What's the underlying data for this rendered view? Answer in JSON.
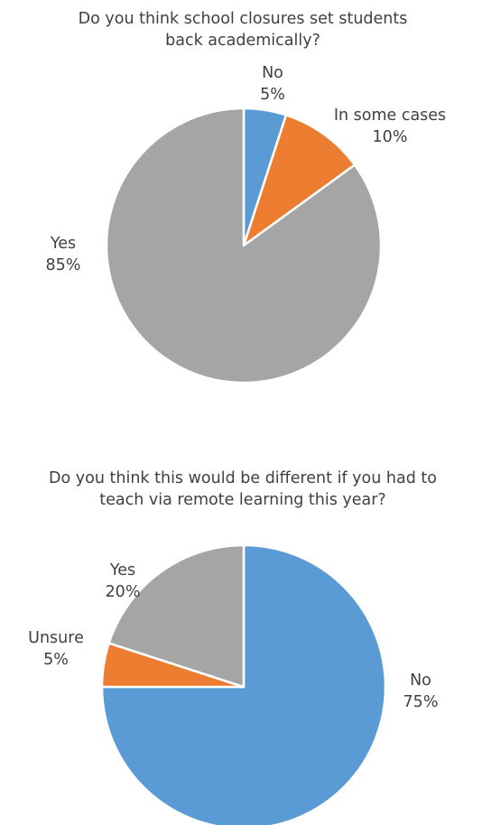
{
  "chart_data": [
    {
      "type": "pie",
      "title_lines": [
        "Do you think school closures set students",
        "back academically?"
      ],
      "slices": [
        {
          "label": "No",
          "value": 5,
          "value_label": "5%",
          "color": "#5b9bd5"
        },
        {
          "label": "In some cases",
          "value": 10,
          "value_label": "10%",
          "color": "#ed7d31"
        },
        {
          "label": "Yes",
          "value": 85,
          "value_label": "85%",
          "color": "#a5a5a5"
        }
      ]
    },
    {
      "type": "pie",
      "title_lines": [
        "Do you think this would be different if you had to",
        "teach via remote learning this year?"
      ],
      "slices": [
        {
          "label": "No",
          "value": 75,
          "value_label": "75%",
          "color": "#5b9bd5"
        },
        {
          "label": "Unsure",
          "value": 5,
          "value_label": "5%",
          "color": "#ed7d31"
        },
        {
          "label": "Yes",
          "value": 20,
          "value_label": "20%",
          "color": "#a5a5a5"
        }
      ]
    }
  ]
}
